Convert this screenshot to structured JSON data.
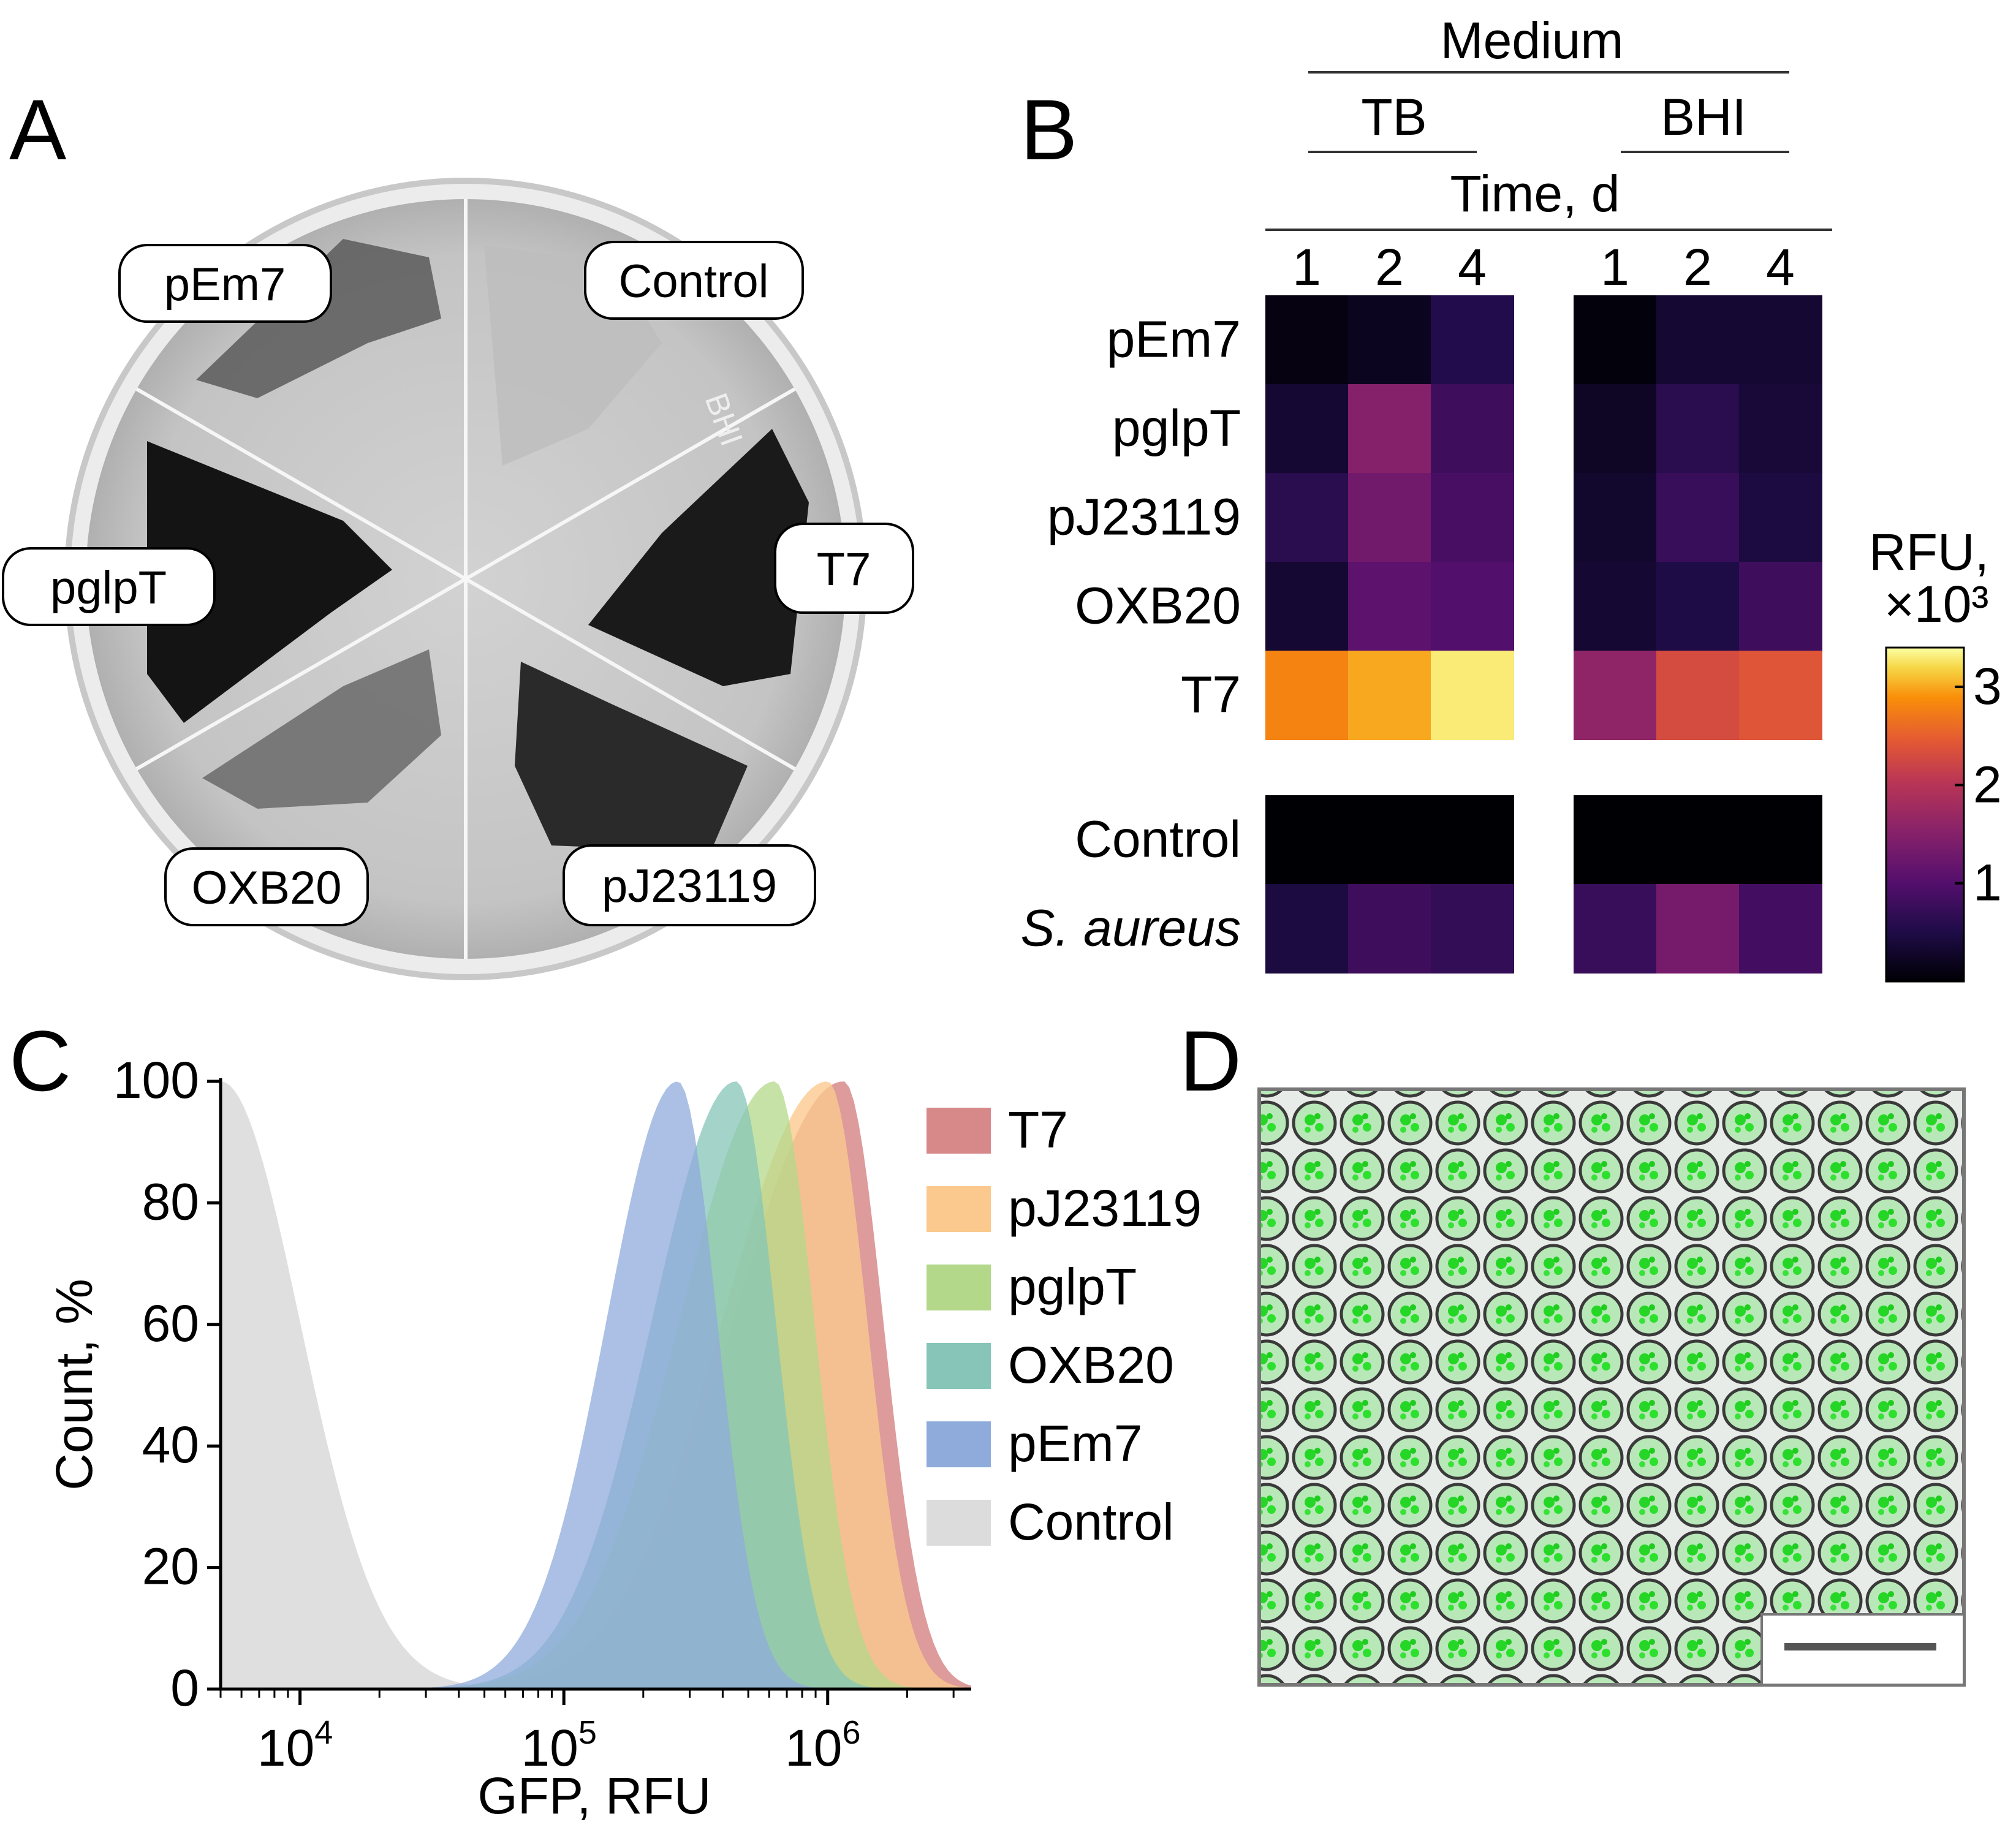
{
  "panels": {
    "A": {
      "label": "A",
      "plate_labels": [
        "pEm7",
        "Control",
        "pglpT",
        "T7",
        "OXB20",
        "pJ23119"
      ],
      "plate_handwriting": "BHI"
    },
    "B": {
      "label": "B",
      "medium_label": "Medium",
      "groups": [
        "TB",
        "BHI"
      ],
      "time_label": "Time, d",
      "time_points": [
        "1",
        "2",
        "4"
      ],
      "rows": [
        "pEm7",
        "pglpT",
        "pJ23119",
        "OXB20",
        "T7",
        "Control",
        "S. aureus"
      ],
      "colorbar_title_1": "RFU,",
      "colorbar_title_2": "×10³",
      "colorbar_ticks": [
        "1",
        "2",
        "3"
      ]
    },
    "C": {
      "label": "C",
      "ylabel": "Count, %",
      "xlabel": "GFP, RFU",
      "yticks": [
        "0",
        "20",
        "40",
        "60",
        "80",
        "100"
      ],
      "xticks": [
        {
          "base": "10",
          "exp": "4"
        },
        {
          "base": "10",
          "exp": "5"
        },
        {
          "base": "10",
          "exp": "6"
        }
      ],
      "legend": [
        {
          "name": "T7",
          "color": "#d7898a"
        },
        {
          "name": "pJ23119",
          "color": "#fbc98e"
        },
        {
          "name": "pglpT",
          "color": "#b3d889"
        },
        {
          "name": "OXB20",
          "color": "#86c5b7"
        },
        {
          "name": "pEm7",
          "color": "#8fabdb"
        },
        {
          "name": "Control",
          "color": "#dcdcdc"
        }
      ]
    },
    "D": {
      "label": "D"
    }
  },
  "chart_data": [
    {
      "type": "heatmap",
      "panel": "B",
      "columns": [
        {
          "medium": "TB",
          "day": 1
        },
        {
          "medium": "TB",
          "day": 2
        },
        {
          "medium": "TB",
          "day": 4
        },
        {
          "medium": "BHI",
          "day": 1
        },
        {
          "medium": "BHI",
          "day": 2
        },
        {
          "medium": "BHI",
          "day": 4
        }
      ],
      "rows": [
        "pEm7",
        "pglpT",
        "pJ23119",
        "OXB20",
        "T7",
        "Control",
        "S. aureus"
      ],
      "values": [
        [
          0.1,
          0.2,
          0.55,
          0.05,
          0.35,
          0.35
        ],
        [
          0.35,
          1.5,
          0.8,
          0.25,
          0.6,
          0.4
        ],
        [
          0.6,
          1.3,
          0.9,
          0.3,
          0.75,
          0.45
        ],
        [
          0.35,
          1.1,
          1.0,
          0.35,
          0.5,
          0.8
        ],
        [
          2.8,
          3.0,
          3.3,
          1.6,
          2.3,
          2.4
        ],
        [
          0.0,
          0.0,
          0.0,
          0.0,
          0.0,
          0.0
        ],
        [
          0.45,
          0.8,
          0.7,
          0.75,
          1.35,
          0.85
        ]
      ],
      "colorbar": {
        "range": [
          0,
          3.4
        ],
        "ticks": [
          1,
          2,
          3
        ],
        "colormap": "inferno"
      }
    },
    {
      "type": "area",
      "panel": "C",
      "x_scale": "log",
      "xlim": [
        5000,
        3500000
      ],
      "ylim": [
        0,
        100
      ],
      "series": [
        {
          "name": "Control",
          "peak_x": 5000,
          "peak_y": 100
        },
        {
          "name": "pEm7",
          "peak_x": 270000,
          "peak_y": 100
        },
        {
          "name": "OXB20",
          "peak_x": 450000,
          "peak_y": 100
        },
        {
          "name": "pglpT",
          "peak_x": 630000,
          "peak_y": 100
        },
        {
          "name": "pJ23119",
          "peak_x": 1000000,
          "peak_y": 100
        },
        {
          "name": "T7",
          "peak_x": 1150000,
          "peak_y": 100
        }
      ]
    }
  ]
}
